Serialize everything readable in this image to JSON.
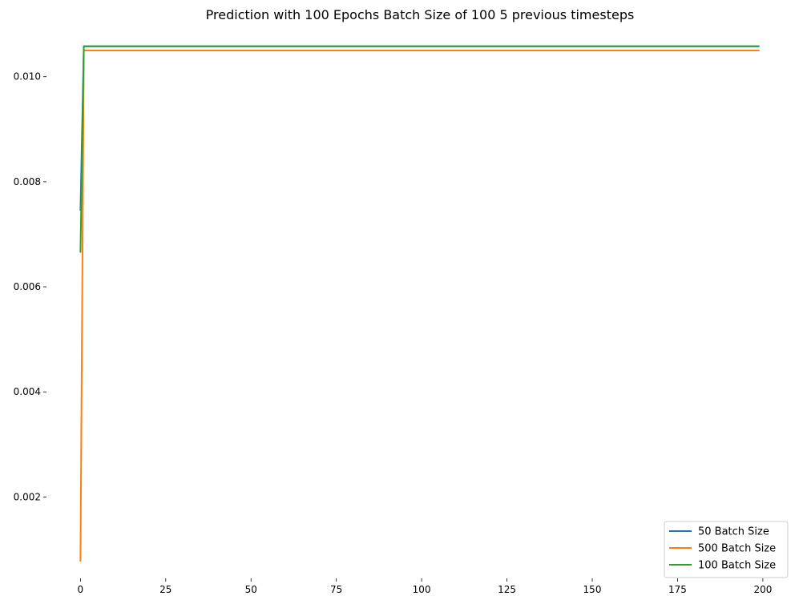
{
  "chart_data": {
    "type": "line",
    "title": "Prediction with 100 Epochs Batch Size of 100 5 previous timesteps",
    "xlabel": "",
    "ylabel": "",
    "xlim": [
      -9.95,
      208.95
    ],
    "ylim": [
      0.00045,
      0.01085
    ],
    "xticks": [
      0,
      25,
      50,
      75,
      100,
      125,
      150,
      175,
      200
    ],
    "yticks": [
      0.002,
      0.004,
      0.006,
      0.008,
      0.01
    ],
    "ytick_labels": [
      "0.002",
      "0.004",
      "0.006",
      "0.008",
      "0.010"
    ],
    "grid": false,
    "legend_position": "bottom-right",
    "series": [
      {
        "name": "50 Batch Size",
        "color": "#1f77b4",
        "x": [
          0,
          1,
          199
        ],
        "y": [
          0.00745,
          0.01058,
          0.01058
        ]
      },
      {
        "name": "500 Batch Size",
        "color": "#ff7f0e",
        "x": [
          0,
          1,
          199
        ],
        "y": [
          0.00077,
          0.0105,
          0.0105
        ]
      },
      {
        "name": "100 Batch Size",
        "color": "#2ca02c",
        "x": [
          0,
          1,
          199
        ],
        "y": [
          0.00665,
          0.01058,
          0.01058
        ]
      }
    ]
  }
}
